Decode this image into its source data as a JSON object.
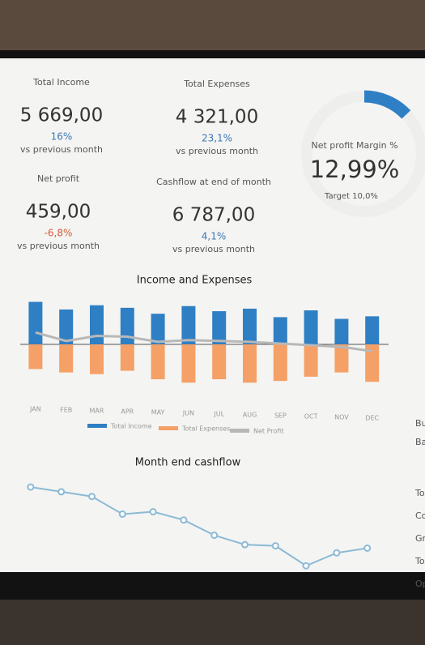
{
  "kpis": [
    {
      "title": "Total Income",
      "value": "5 669,00",
      "change": "16%",
      "note": "vs previous month"
    },
    {
      "title": "Total Expenses",
      "value": "4 321,00",
      "change": "23,1%",
      "note": "vs previous month"
    },
    {
      "title": "Net profit",
      "value": "459,00",
      "change": "-6,8%",
      "note": "vs previous month"
    },
    {
      "title": "Cashflow at end of month",
      "value": "6 787,00",
      "change": "4,1%",
      "note": "vs previous month"
    }
  ],
  "gauge": {
    "title": "Net profit Margin %",
    "value": 12.99,
    "value_label": "12,99%",
    "target": "Target 10,0%",
    "color": "#2f7fc4"
  },
  "side_labels": [
    "Bu",
    "Ba",
    "To",
    "Co",
    "Gr",
    "To",
    "Op"
  ],
  "chart_data": [
    {
      "type": "bar",
      "title": "Income and Expenses",
      "categories": [
        "JAN",
        "FEB",
        "MAR",
        "APR",
        "MAY",
        "JUN",
        "JUL",
        "AUG",
        "SEP",
        "OCT",
        "NOV",
        "DEC"
      ],
      "series": [
        {
          "name": "Total Income",
          "color": "#2f7fc4",
          "values": [
            5000,
            4100,
            4600,
            4300,
            3600,
            4500,
            3900,
            4200,
            3200,
            4000,
            3000,
            3300
          ]
        },
        {
          "name": "Total Expenses",
          "color": "#f5a067",
          "values": [
            -2900,
            -3300,
            -3500,
            -3100,
            -4100,
            -4500,
            -4100,
            -4500,
            -4300,
            -3800,
            -3300,
            -4400
          ]
        },
        {
          "name": "Net Profit",
          "color": "#b8b8b8",
          "type": "line",
          "values": [
            1400,
            400,
            1000,
            900,
            300,
            500,
            400,
            300,
            100,
            -100,
            -300,
            -800
          ]
        }
      ],
      "ylim": [
        -6000,
        8000
      ]
    },
    {
      "type": "line",
      "title": "Month end cashflow",
      "color": "#8bbad6",
      "values": [
        8200,
        7800,
        7400,
        5900,
        6100,
        5400,
        4100,
        3300,
        3200,
        1500,
        2600,
        3000
      ],
      "ylim": [
        0,
        10000
      ]
    }
  ]
}
